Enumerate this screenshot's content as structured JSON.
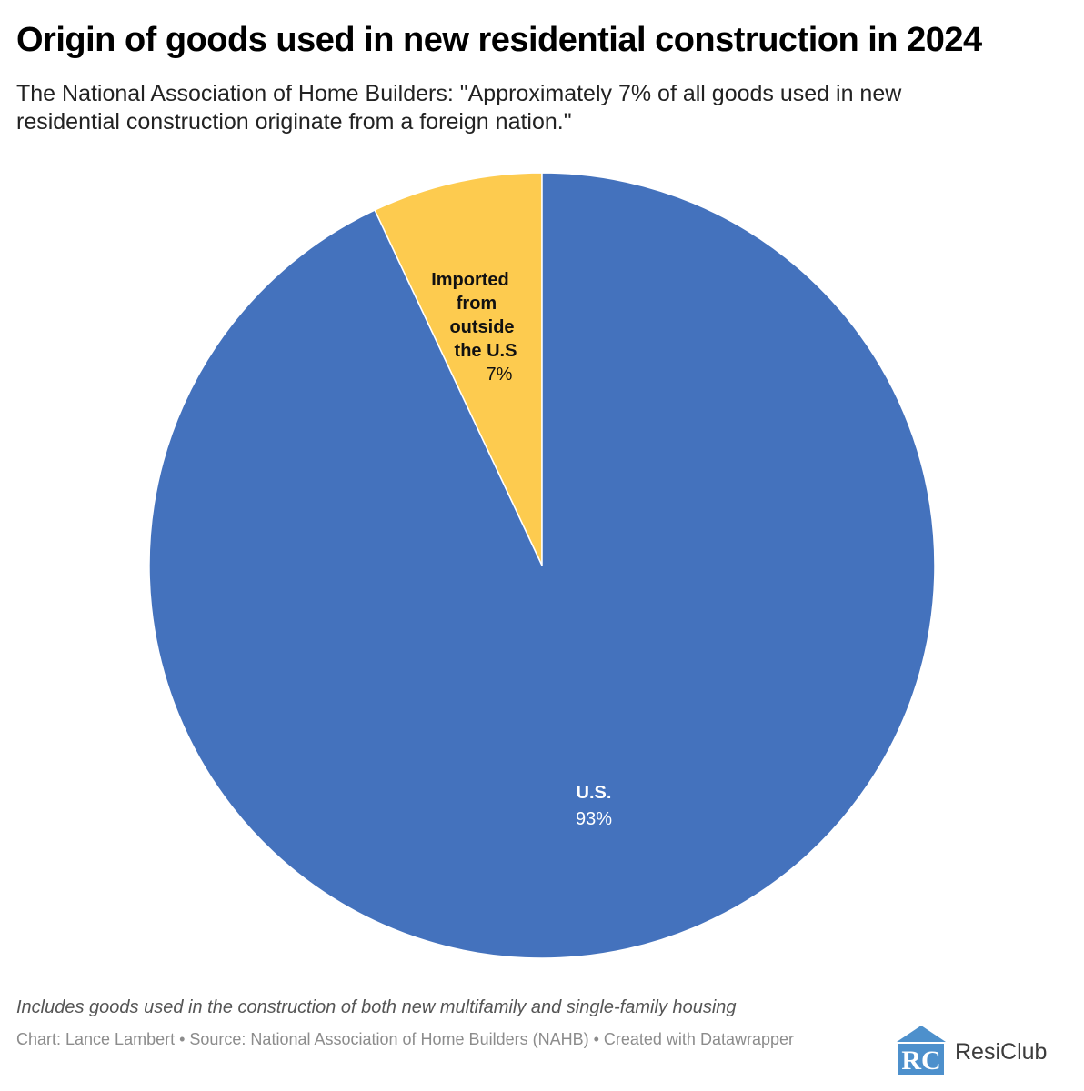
{
  "title": "Origin of goods used in new residential construction in 2024",
  "subtitle": "The National Association of Home Builders: \"Approximately 7% of all goods used in new residential construction originate from a foreign nation.\"",
  "footnote": "Includes goods used in the construction of both new multifamily and single-family housing",
  "credits": "Chart: Lance Lambert • Source: National Association of Home Builders (NAHB) • Created with Datawrapper",
  "logo": {
    "mark_text": "RC",
    "name": "ResiClub"
  },
  "colors": {
    "us": "#4472bd",
    "imported": "#fdcb4f",
    "slice_border": "#ffffff",
    "logo_blue": "#4d90cc"
  },
  "chart_data": {
    "type": "pie",
    "title": "Origin of goods used in new residential construction in 2024",
    "unit": "%",
    "slices": [
      {
        "key": "imported",
        "label_lines": [
          "Imported",
          "from",
          "outside",
          "the U.S"
        ],
        "value": 7,
        "value_label": "7%",
        "color": "#fdcb4f",
        "label_color": "#111111"
      },
      {
        "key": "us",
        "label_lines": [
          "U.S."
        ],
        "value": 93,
        "value_label": "93%",
        "color": "#4472bd",
        "label_color": "#ffffff"
      }
    ]
  }
}
